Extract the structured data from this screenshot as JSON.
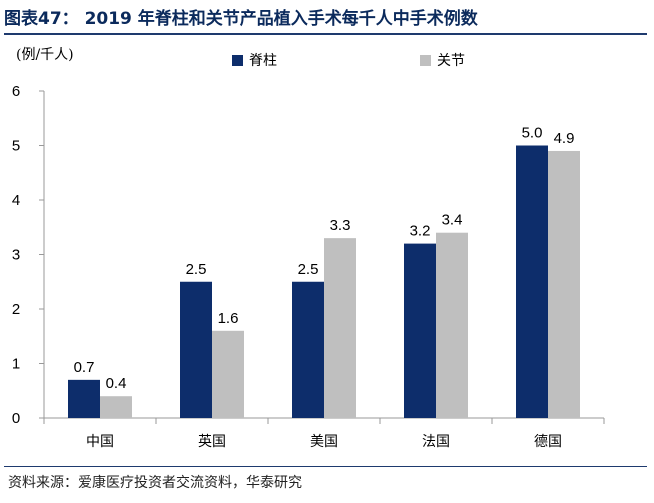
{
  "title": "图表47： 2019 年脊柱和关节产品植入手术每千人中手术例数",
  "unit_label": "(例/千人)",
  "colors": {
    "spine": "#0d2d6b",
    "joint": "#bfbfbf",
    "accent": "#1e3a6e"
  },
  "chart_data": {
    "type": "bar",
    "categories": [
      "中国",
      "英国",
      "美国",
      "法国",
      "德国"
    ],
    "series": [
      {
        "name": "脊柱",
        "values": [
          0.7,
          2.5,
          2.5,
          3.2,
          5.0
        ]
      },
      {
        "name": "关节",
        "values": [
          0.4,
          1.6,
          3.3,
          3.4,
          4.9
        ]
      }
    ],
    "value_labels": [
      [
        "0.7",
        "2.5",
        "2.5",
        "3.2",
        "5.0"
      ],
      [
        "0.4",
        "1.6",
        "3.3",
        "3.4",
        "4.9"
      ]
    ],
    "ylim": [
      0,
      6
    ],
    "yticks": [
      0,
      1,
      2,
      3,
      4,
      5,
      6
    ],
    "xlabel": "",
    "ylabel": "(例/千人)",
    "legend_position": "top"
  },
  "source": "资料来源：爱康医疗投资者交流资料，华泰研究"
}
